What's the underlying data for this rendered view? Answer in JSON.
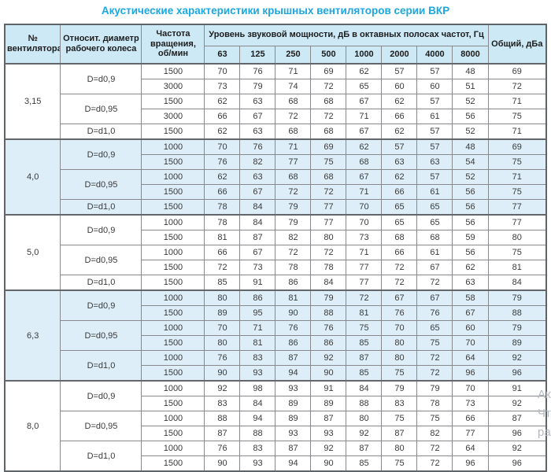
{
  "title": "Акустические характеристики крышных вентиляторов серии ВКР",
  "colors": {
    "title": "#1ba7e1",
    "header_bg": "#cde9f6",
    "band_bg": "#ddeef9",
    "border": "#87898c"
  },
  "table": {
    "headers": {
      "fan_no": "№ вентилятора",
      "diameter": "Относит. диаметр рабочего колеса",
      "speed": "Частота вращения, об/мин",
      "spl_group": "Уровень звуковой мощности, дБ в октавных полосах частот, Гц",
      "frequencies": [
        "63",
        "125",
        "250",
        "500",
        "1000",
        "2000",
        "4000",
        "8000"
      ],
      "total": "Общий, дБа"
    },
    "groups": [
      {
        "fan": "3,15",
        "shaded": false,
        "diameters": [
          {
            "label": "D=d0,9",
            "rows": [
              {
                "speed": "1500",
                "values": [
                  70,
                  76,
                  71,
                  69,
                  62,
                  57,
                  57,
                  48
                ],
                "total": 69
              },
              {
                "speed": "3000",
                "values": [
                  73,
                  79,
                  74,
                  72,
                  65,
                  60,
                  60,
                  51
                ],
                "total": 72
              }
            ]
          },
          {
            "label": "D=d0,95",
            "rows": [
              {
                "speed": "1500",
                "values": [
                  62,
                  63,
                  68,
                  68,
                  67,
                  62,
                  57,
                  52
                ],
                "total": 71
              },
              {
                "speed": "3000",
                "values": [
                  66,
                  67,
                  72,
                  72,
                  71,
                  66,
                  61,
                  56
                ],
                "total": 75
              }
            ]
          },
          {
            "label": "D=d1,0",
            "rows": [
              {
                "speed": "1500",
                "values": [
                  62,
                  63,
                  68,
                  68,
                  67,
                  62,
                  57,
                  52
                ],
                "total": 71
              }
            ]
          }
        ]
      },
      {
        "fan": "4,0",
        "shaded": true,
        "diameters": [
          {
            "label": "D=d0,9",
            "rows": [
              {
                "speed": "1000",
                "values": [
                  70,
                  76,
                  71,
                  69,
                  62,
                  57,
                  57,
                  48
                ],
                "total": 69
              },
              {
                "speed": "1500",
                "values": [
                  76,
                  82,
                  77,
                  75,
                  68,
                  63,
                  63,
                  54
                ],
                "total": 75
              }
            ]
          },
          {
            "label": "D=d0,95",
            "rows": [
              {
                "speed": "1000",
                "values": [
                  62,
                  63,
                  68,
                  68,
                  67,
                  62,
                  57,
                  52
                ],
                "total": 71
              },
              {
                "speed": "1500",
                "values": [
                  66,
                  67,
                  72,
                  72,
                  71,
                  66,
                  61,
                  56
                ],
                "total": 75
              }
            ]
          },
          {
            "label": "D=d1,0",
            "rows": [
              {
                "speed": "1500",
                "values": [
                  78,
                  84,
                  79,
                  77,
                  70,
                  65,
                  65,
                  56
                ],
                "total": 77
              }
            ]
          }
        ]
      },
      {
        "fan": "5,0",
        "shaded": false,
        "diameters": [
          {
            "label": "D=d0,9",
            "rows": [
              {
                "speed": "1000",
                "values": [
                  78,
                  84,
                  79,
                  77,
                  70,
                  65,
                  65,
                  56
                ],
                "total": 77
              },
              {
                "speed": "1500",
                "values": [
                  81,
                  87,
                  82,
                  80,
                  73,
                  68,
                  68,
                  59
                ],
                "total": 80
              }
            ]
          },
          {
            "label": "D=d0,95",
            "rows": [
              {
                "speed": "1000",
                "values": [
                  66,
                  67,
                  72,
                  72,
                  71,
                  66,
                  61,
                  56
                ],
                "total": 75
              },
              {
                "speed": "1500",
                "values": [
                  72,
                  73,
                  78,
                  78,
                  77,
                  72,
                  67,
                  62
                ],
                "total": 81
              }
            ]
          },
          {
            "label": "D=d1,0",
            "rows": [
              {
                "speed": "1500",
                "values": [
                  85,
                  91,
                  86,
                  84,
                  77,
                  72,
                  72,
                  63
                ],
                "total": 84
              }
            ]
          }
        ]
      },
      {
        "fan": "6,3",
        "shaded": true,
        "diameters": [
          {
            "label": "D=d0,9",
            "rows": [
              {
                "speed": "1000",
                "values": [
                  80,
                  86,
                  81,
                  79,
                  72,
                  67,
                  67,
                  58
                ],
                "total": 79
              },
              {
                "speed": "1500",
                "values": [
                  89,
                  95,
                  90,
                  88,
                  81,
                  76,
                  76,
                  67
                ],
                "total": 88
              }
            ]
          },
          {
            "label": "D=d0,95",
            "rows": [
              {
                "speed": "1000",
                "values": [
                  70,
                  71,
                  76,
                  76,
                  75,
                  70,
                  65,
                  60
                ],
                "total": 79
              },
              {
                "speed": "1500",
                "values": [
                  80,
                  81,
                  86,
                  86,
                  85,
                  80,
                  75,
                  70
                ],
                "total": 89
              }
            ]
          },
          {
            "label": "D=d1,0",
            "rows": [
              {
                "speed": "1000",
                "values": [
                  76,
                  83,
                  87,
                  92,
                  87,
                  80,
                  72,
                  64
                ],
                "total": 92
              },
              {
                "speed": "1500",
                "values": [
                  90,
                  93,
                  94,
                  90,
                  85,
                  75,
                  72,
                  96
                ],
                "total": 96
              }
            ]
          }
        ]
      },
      {
        "fan": "8,0",
        "shaded": false,
        "diameters": [
          {
            "label": "D=d0,9",
            "rows": [
              {
                "speed": "1000",
                "values": [
                  92,
                  98,
                  93,
                  91,
                  84,
                  79,
                  79,
                  70
                ],
                "total": 91
              },
              {
                "speed": "1500",
                "values": [
                  83,
                  84,
                  89,
                  89,
                  88,
                  83,
                  78,
                  73
                ],
                "total": 92
              }
            ]
          },
          {
            "label": "D=d0,95",
            "rows": [
              {
                "speed": "1000",
                "values": [
                  88,
                  94,
                  89,
                  87,
                  80,
                  75,
                  75,
                  66
                ],
                "total": 87
              },
              {
                "speed": "1500",
                "values": [
                  87,
                  88,
                  93,
                  93,
                  92,
                  87,
                  82,
                  77
                ],
                "total": 96
              }
            ]
          },
          {
            "label": "D=d1,0",
            "rows": [
              {
                "speed": "1000",
                "values": [
                  76,
                  83,
                  87,
                  92,
                  87,
                  80,
                  72,
                  64
                ],
                "total": 92
              },
              {
                "speed": "1500",
                "values": [
                  90,
                  93,
                  94,
                  90,
                  85,
                  75,
                  72,
                  96
                ],
                "total": 96
              }
            ]
          }
        ]
      }
    ]
  },
  "watermark": {
    "fragments": [
      "Ак",
      "Чт",
      "ра"
    ]
  }
}
